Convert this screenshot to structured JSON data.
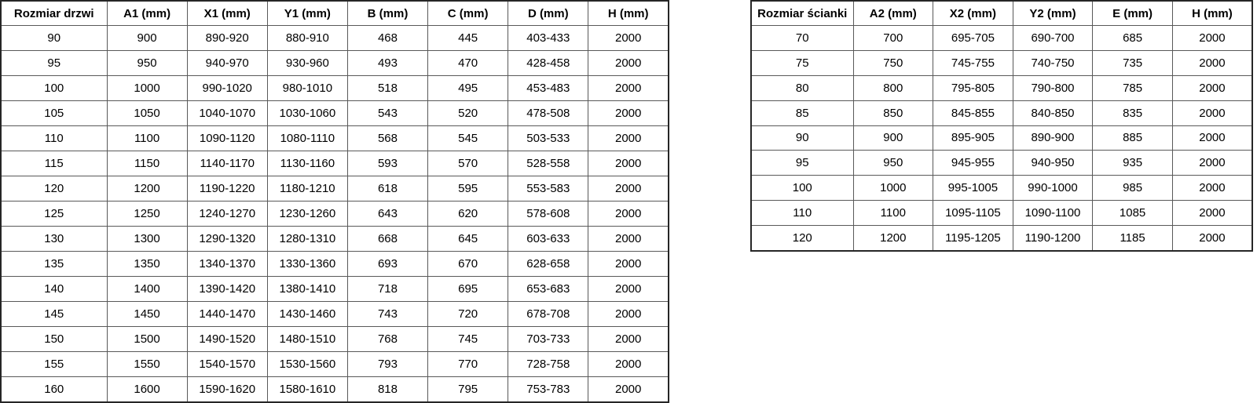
{
  "colors": {
    "background": "#ffffff",
    "text": "#000000",
    "inner_border": "#595959",
    "outer_border": "#262626"
  },
  "tables": [
    {
      "id": "door-table",
      "name": "door-size-table",
      "headers": [
        "Rozmiar drzwi",
        "A1 (mm)",
        "X1 (mm)",
        "Y1 (mm)",
        "B (mm)",
        "C (mm)",
        "D (mm)",
        "H (mm)"
      ],
      "rows": [
        [
          "90",
          "900",
          "890-920",
          "880-910",
          "468",
          "445",
          "403-433",
          "2000"
        ],
        [
          "95",
          "950",
          "940-970",
          "930-960",
          "493",
          "470",
          "428-458",
          "2000"
        ],
        [
          "100",
          "1000",
          "990-1020",
          "980-1010",
          "518",
          "495",
          "453-483",
          "2000"
        ],
        [
          "105",
          "1050",
          "1040-1070",
          "1030-1060",
          "543",
          "520",
          "478-508",
          "2000"
        ],
        [
          "110",
          "1100",
          "1090-1120",
          "1080-1110",
          "568",
          "545",
          "503-533",
          "2000"
        ],
        [
          "115",
          "1150",
          "1140-1170",
          "1130-1160",
          "593",
          "570",
          "528-558",
          "2000"
        ],
        [
          "120",
          "1200",
          "1190-1220",
          "1180-1210",
          "618",
          "595",
          "553-583",
          "2000"
        ],
        [
          "125",
          "1250",
          "1240-1270",
          "1230-1260",
          "643",
          "620",
          "578-608",
          "2000"
        ],
        [
          "130",
          "1300",
          "1290-1320",
          "1280-1310",
          "668",
          "645",
          "603-633",
          "2000"
        ],
        [
          "135",
          "1350",
          "1340-1370",
          "1330-1360",
          "693",
          "670",
          "628-658",
          "2000"
        ],
        [
          "140",
          "1400",
          "1390-1420",
          "1380-1410",
          "718",
          "695",
          "653-683",
          "2000"
        ],
        [
          "145",
          "1450",
          "1440-1470",
          "1430-1460",
          "743",
          "720",
          "678-708",
          "2000"
        ],
        [
          "150",
          "1500",
          "1490-1520",
          "1480-1510",
          "768",
          "745",
          "703-733",
          "2000"
        ],
        [
          "155",
          "1550",
          "1540-1570",
          "1530-1560",
          "793",
          "770",
          "728-758",
          "2000"
        ],
        [
          "160",
          "1600",
          "1590-1620",
          "1580-1610",
          "818",
          "795",
          "753-783",
          "2000"
        ]
      ],
      "first_col_width": 135
    },
    {
      "id": "wall-table",
      "name": "wall-panel-size-table",
      "headers": [
        "Rozmiar ścianki",
        "A2 (mm)",
        "X2 (mm)",
        "Y2 (mm)",
        "E (mm)",
        "H (mm)"
      ],
      "rows": [
        [
          "70",
          "700",
          "695-705",
          "690-700",
          "685",
          "2000"
        ],
        [
          "75",
          "750",
          "745-755",
          "740-750",
          "735",
          "2000"
        ],
        [
          "80",
          "800",
          "795-805",
          "790-800",
          "785",
          "2000"
        ],
        [
          "85",
          "850",
          "845-855",
          "840-850",
          "835",
          "2000"
        ],
        [
          "90",
          "900",
          "895-905",
          "890-900",
          "885",
          "2000"
        ],
        [
          "95",
          "950",
          "945-955",
          "940-950",
          "935",
          "2000"
        ],
        [
          "100",
          "1000",
          "995-1005",
          "990-1000",
          "985",
          "2000"
        ],
        [
          "110",
          "1100",
          "1095-1105",
          "1090-1100",
          "1085",
          "2000"
        ],
        [
          "120",
          "1200",
          "1195-1205",
          "1190-1200",
          "1185",
          "2000"
        ]
      ],
      "first_col_width": 130
    }
  ]
}
